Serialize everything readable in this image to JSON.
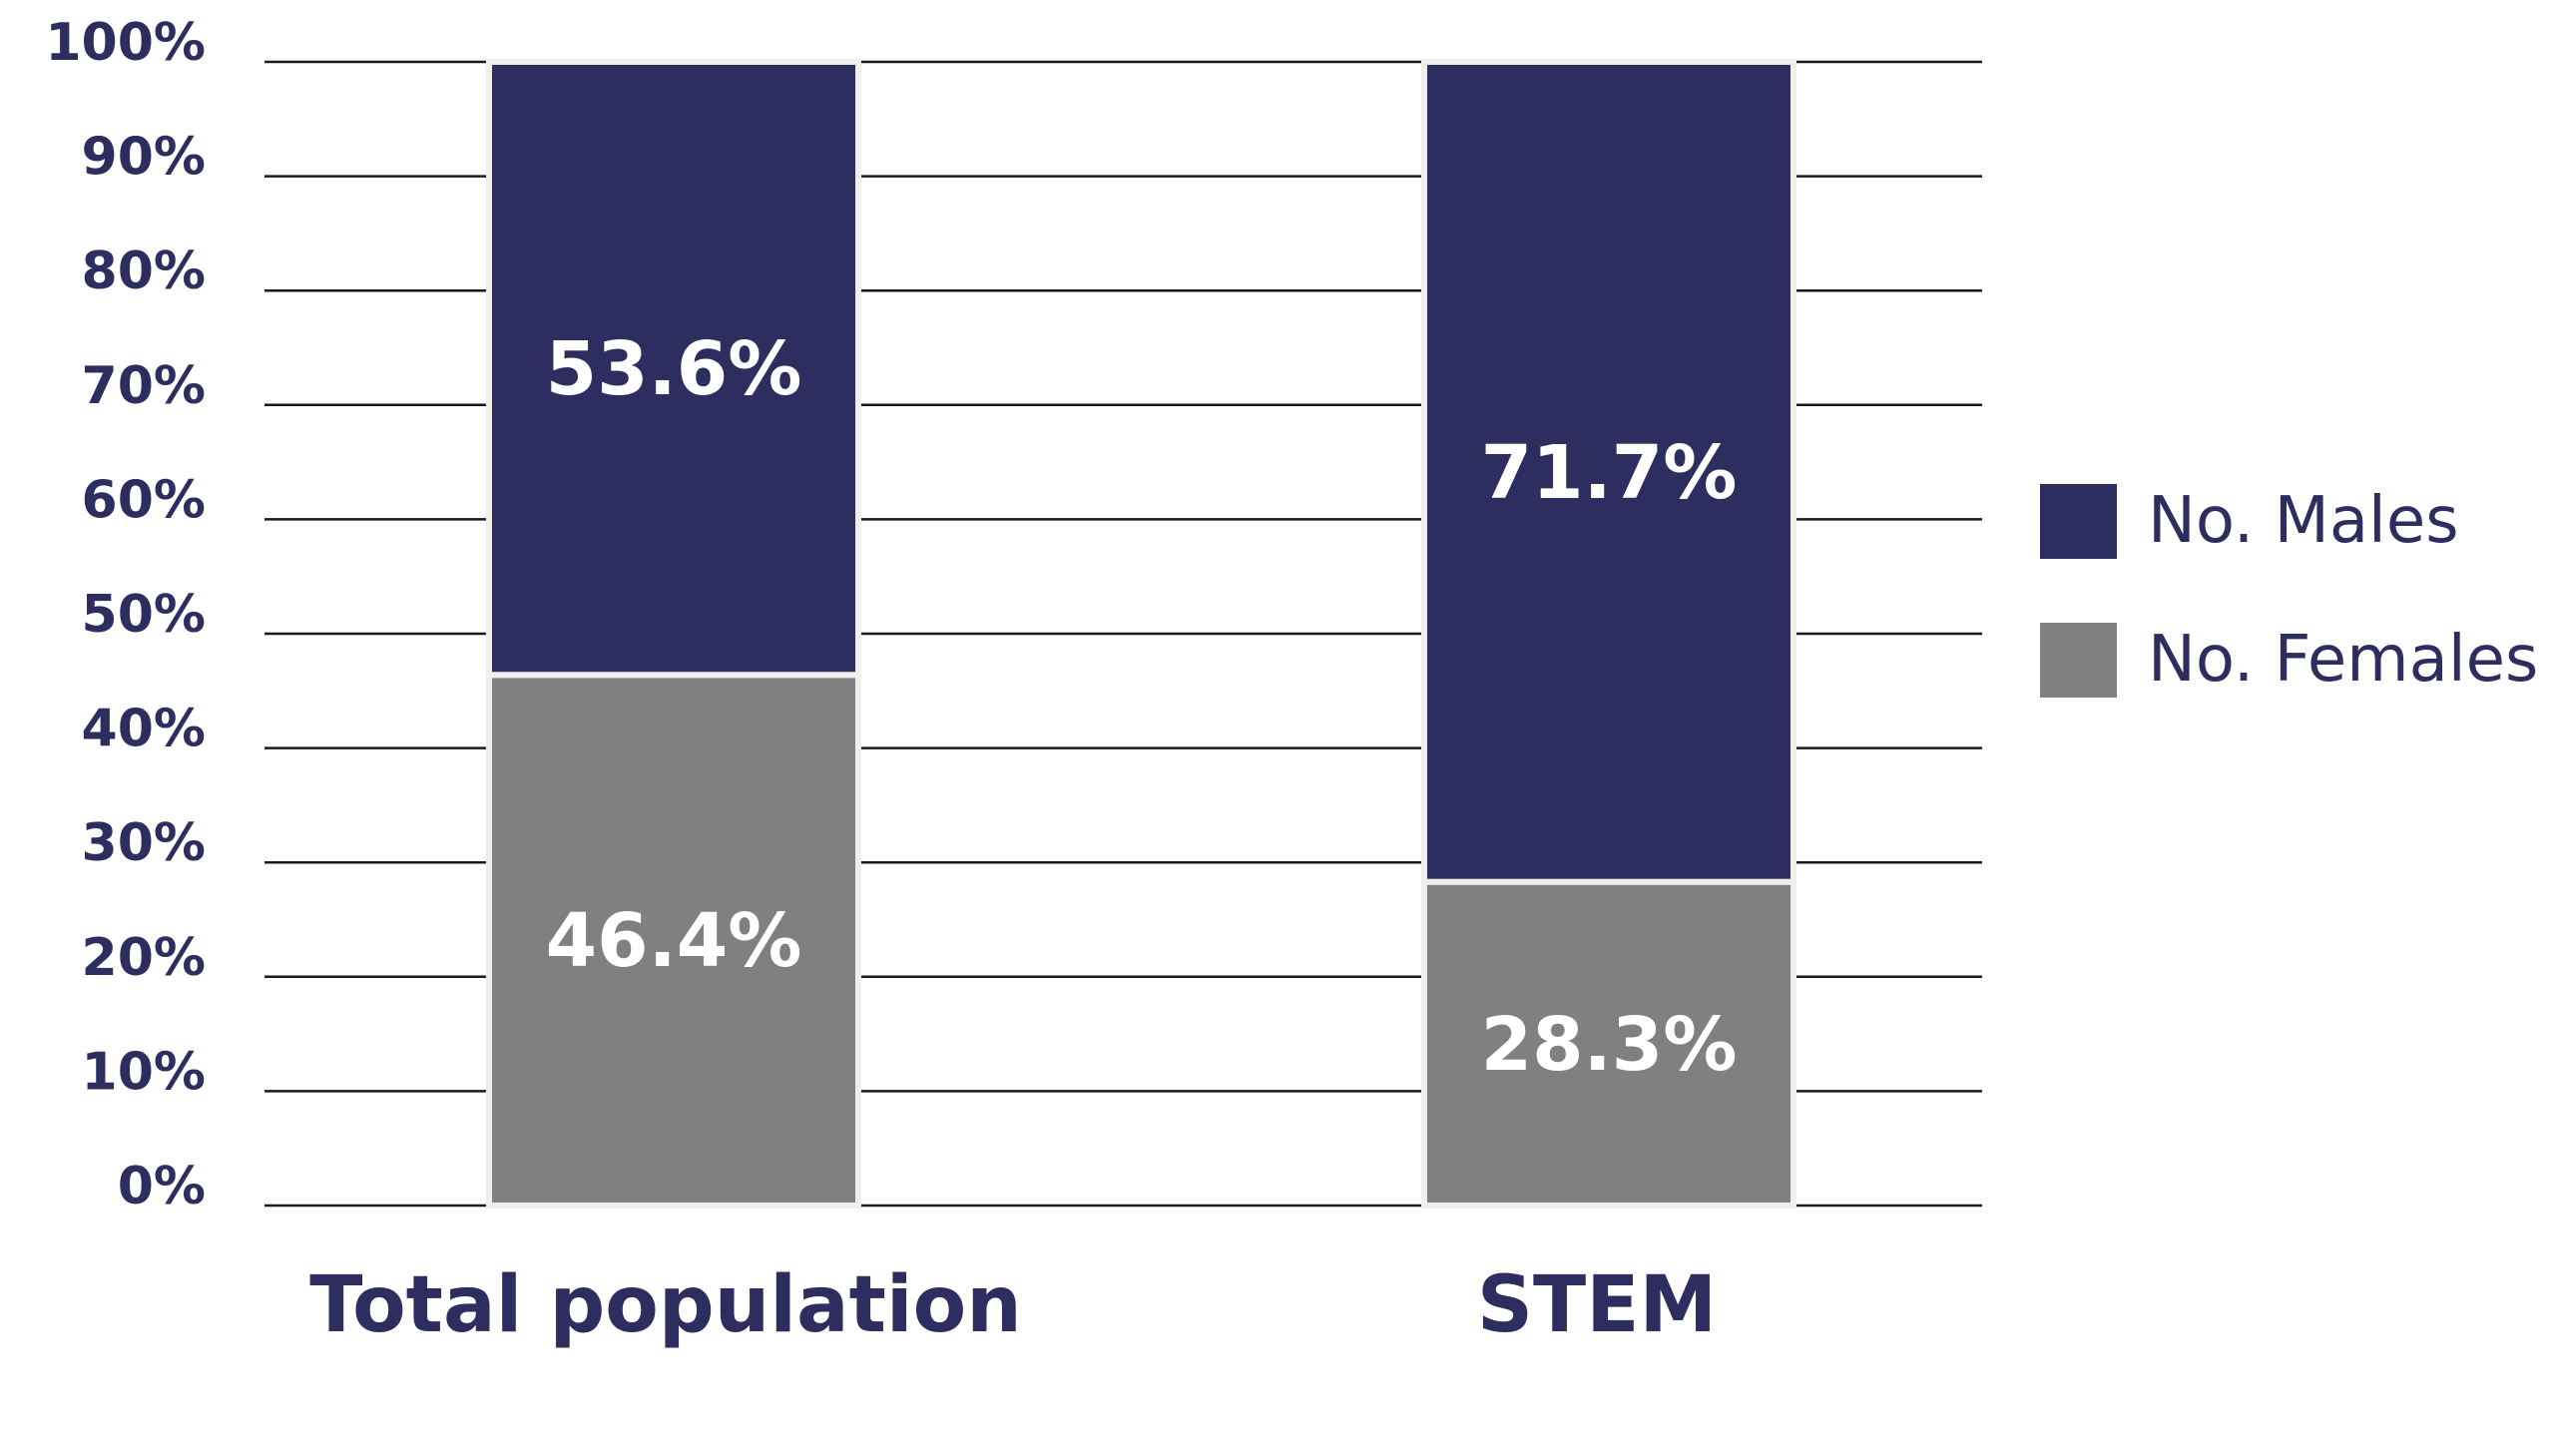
{
  "chart_data": {
    "type": "bar",
    "stacked": true,
    "title": "",
    "xlabel": "",
    "ylabel": "",
    "ylim": [
      0,
      100
    ],
    "y_ticks": [
      "0%",
      "10%",
      "20%",
      "30%",
      "40%",
      "50%",
      "60%",
      "70%",
      "80%",
      "90%",
      "100%"
    ],
    "categories": [
      "Total population",
      "STEM"
    ],
    "series": [
      {
        "name": "No. Females",
        "values": [
          46.4,
          28.3
        ],
        "labels": [
          "46.4%",
          "28.3%"
        ],
        "color": "#808080"
      },
      {
        "name": "No. Males",
        "values": [
          53.6,
          71.7
        ],
        "labels": [
          "53.6%",
          "71.7%"
        ],
        "color": "#2e2d5f"
      }
    ],
    "legend": {
      "placement": "right",
      "entries": [
        "No. Males",
        "No. Females"
      ]
    },
    "grid": true,
    "text_color": "#2e2d5f"
  }
}
